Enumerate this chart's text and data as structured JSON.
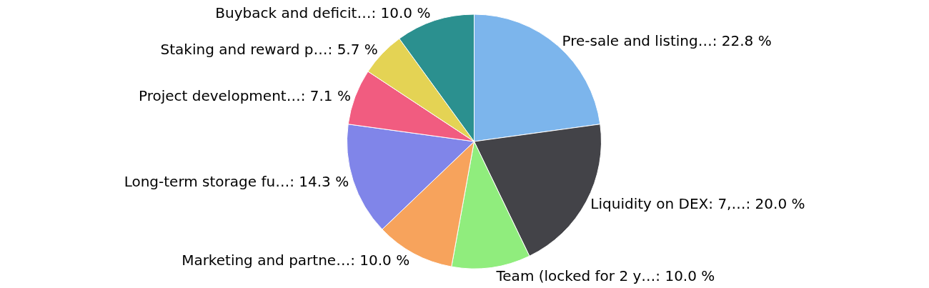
{
  "chart_data": {
    "type": "pie",
    "categories": [
      "Pre-sale and listing…",
      "Liquidity on DEX: 7,…",
      "Team (locked for 2 y…",
      "Marketing and partne…",
      "Long-term storage fu…",
      "Project development…",
      "Staking and reward p…",
      "Buyback and deficit…"
    ],
    "values": [
      22.8,
      20.0,
      10.0,
      10.0,
      14.3,
      7.1,
      5.7,
      10.0
    ],
    "value_labels": [
      "22.8 %",
      "20.0 %",
      "10.0 %",
      "10.0 %",
      "14.3 %",
      "7.1 %",
      "5.7 %",
      "10.0 %"
    ],
    "colors": [
      "#7cb5ec",
      "#434348",
      "#90ed7d",
      "#f7a35c",
      "#8085e9",
      "#f15c80",
      "#e4d354",
      "#2b908f"
    ],
    "legend": false
  }
}
